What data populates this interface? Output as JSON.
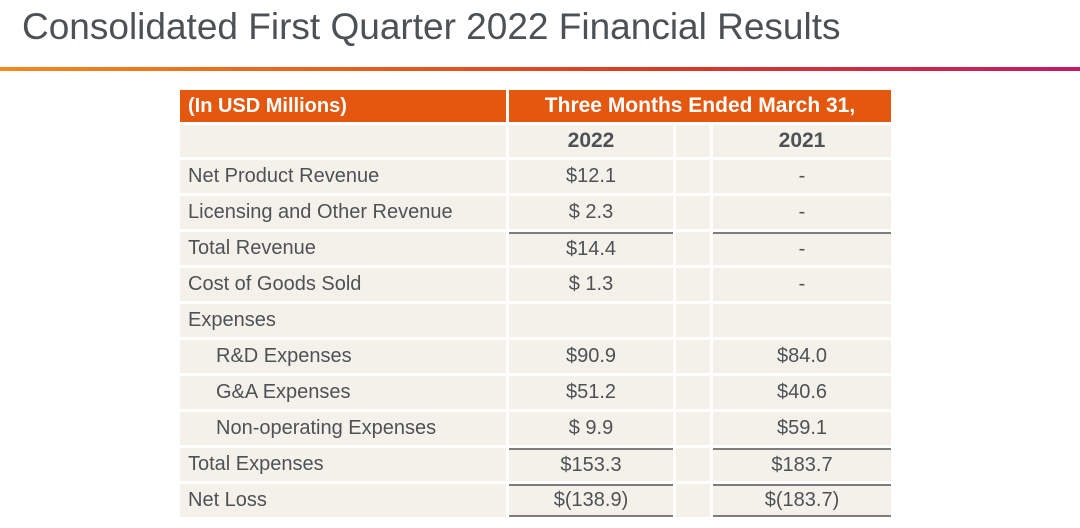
{
  "slide": {
    "title": "Consolidated First Quarter 2022 Financial Results",
    "accent_gradient": [
      "#f28a1e",
      "#dc3b24",
      "#c31a64"
    ]
  },
  "table": {
    "unit_header": "(In USD Millions)",
    "period_header": "Three Months Ended March 31,",
    "col_headers": [
      "2022",
      "2021"
    ],
    "colors": {
      "header_bg": "#e3570e",
      "header_text": "#ffffff",
      "row_bg": "#f4f1ea",
      "text": "#4e5256",
      "sum_rule": "#7d7d7d"
    },
    "rows": [
      {
        "label": "Net Product Revenue",
        "y2022": "$12.1",
        "y2021": "-",
        "indent": false,
        "rule_top": false,
        "rule_bottom": false
      },
      {
        "label": "Licensing and Other Revenue",
        "y2022": "$ 2.3",
        "y2021": "-",
        "indent": false,
        "rule_top": false,
        "rule_bottom": false
      },
      {
        "label": "Total Revenue",
        "y2022": "$14.4",
        "y2021": "-",
        "indent": false,
        "rule_top": true,
        "rule_bottom": false
      },
      {
        "label": "Cost of Goods Sold",
        "y2022": "$ 1.3",
        "y2021": "-",
        "indent": false,
        "rule_top": false,
        "rule_bottom": false
      },
      {
        "label": "Expenses",
        "y2022": "",
        "y2021": "",
        "indent": false,
        "rule_top": false,
        "rule_bottom": false
      },
      {
        "label": "R&D Expenses",
        "y2022": "$90.9",
        "y2021": "$84.0",
        "indent": true,
        "rule_top": false,
        "rule_bottom": false
      },
      {
        "label": "G&A Expenses",
        "y2022": "$51.2",
        "y2021": "$40.6",
        "indent": true,
        "rule_top": false,
        "rule_bottom": false
      },
      {
        "label": "Non-operating Expenses",
        "y2022": "$ 9.9",
        "y2021": "$59.1",
        "indent": true,
        "rule_top": false,
        "rule_bottom": false
      },
      {
        "label": "Total Expenses",
        "y2022": "$153.3",
        "y2021": "$183.7",
        "indent": false,
        "rule_top": true,
        "rule_bottom": false
      },
      {
        "label": "Net Loss",
        "y2022": "$(138.9)",
        "y2021": "$(183.7)",
        "indent": false,
        "rule_top": true,
        "rule_bottom": true
      }
    ]
  }
}
